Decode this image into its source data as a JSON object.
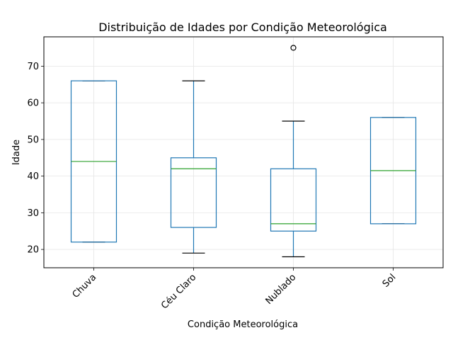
{
  "chart_data": {
    "type": "box",
    "title": "Distribuição de Idades por Condição Meteorológica",
    "xlabel": "Condição Meteorológica",
    "ylabel": "Idade",
    "ylim": [
      15,
      78
    ],
    "yticks": [
      20,
      30,
      40,
      50,
      60,
      70
    ],
    "grid": true,
    "categories": [
      "Chuva",
      "Céu Claro",
      "Nublado",
      "Sol"
    ],
    "boxes": [
      {
        "category": "Chuva",
        "whisker_low": 22,
        "q1": 22,
        "median": 44,
        "q3": 66,
        "whisker_high": 66,
        "outliers": []
      },
      {
        "category": "Céu Claro",
        "whisker_low": 19,
        "q1": 26,
        "median": 42,
        "q3": 45,
        "whisker_high": 66,
        "outliers": []
      },
      {
        "category": "Nublado",
        "whisker_low": 18,
        "q1": 25,
        "median": 27,
        "q3": 42,
        "whisker_high": 55,
        "outliers": [
          75
        ]
      },
      {
        "category": "Sol",
        "whisker_low": 27,
        "q1": 27,
        "median": 41.5,
        "q3": 56,
        "whisker_high": 56,
        "outliers": []
      }
    ],
    "colors": {
      "box": "#1f77b4",
      "median": "#2ca02c",
      "whisker": "#1f77b4",
      "cap": "#000000",
      "grid": "#e5e5e5",
      "outlier": "#000000"
    }
  }
}
